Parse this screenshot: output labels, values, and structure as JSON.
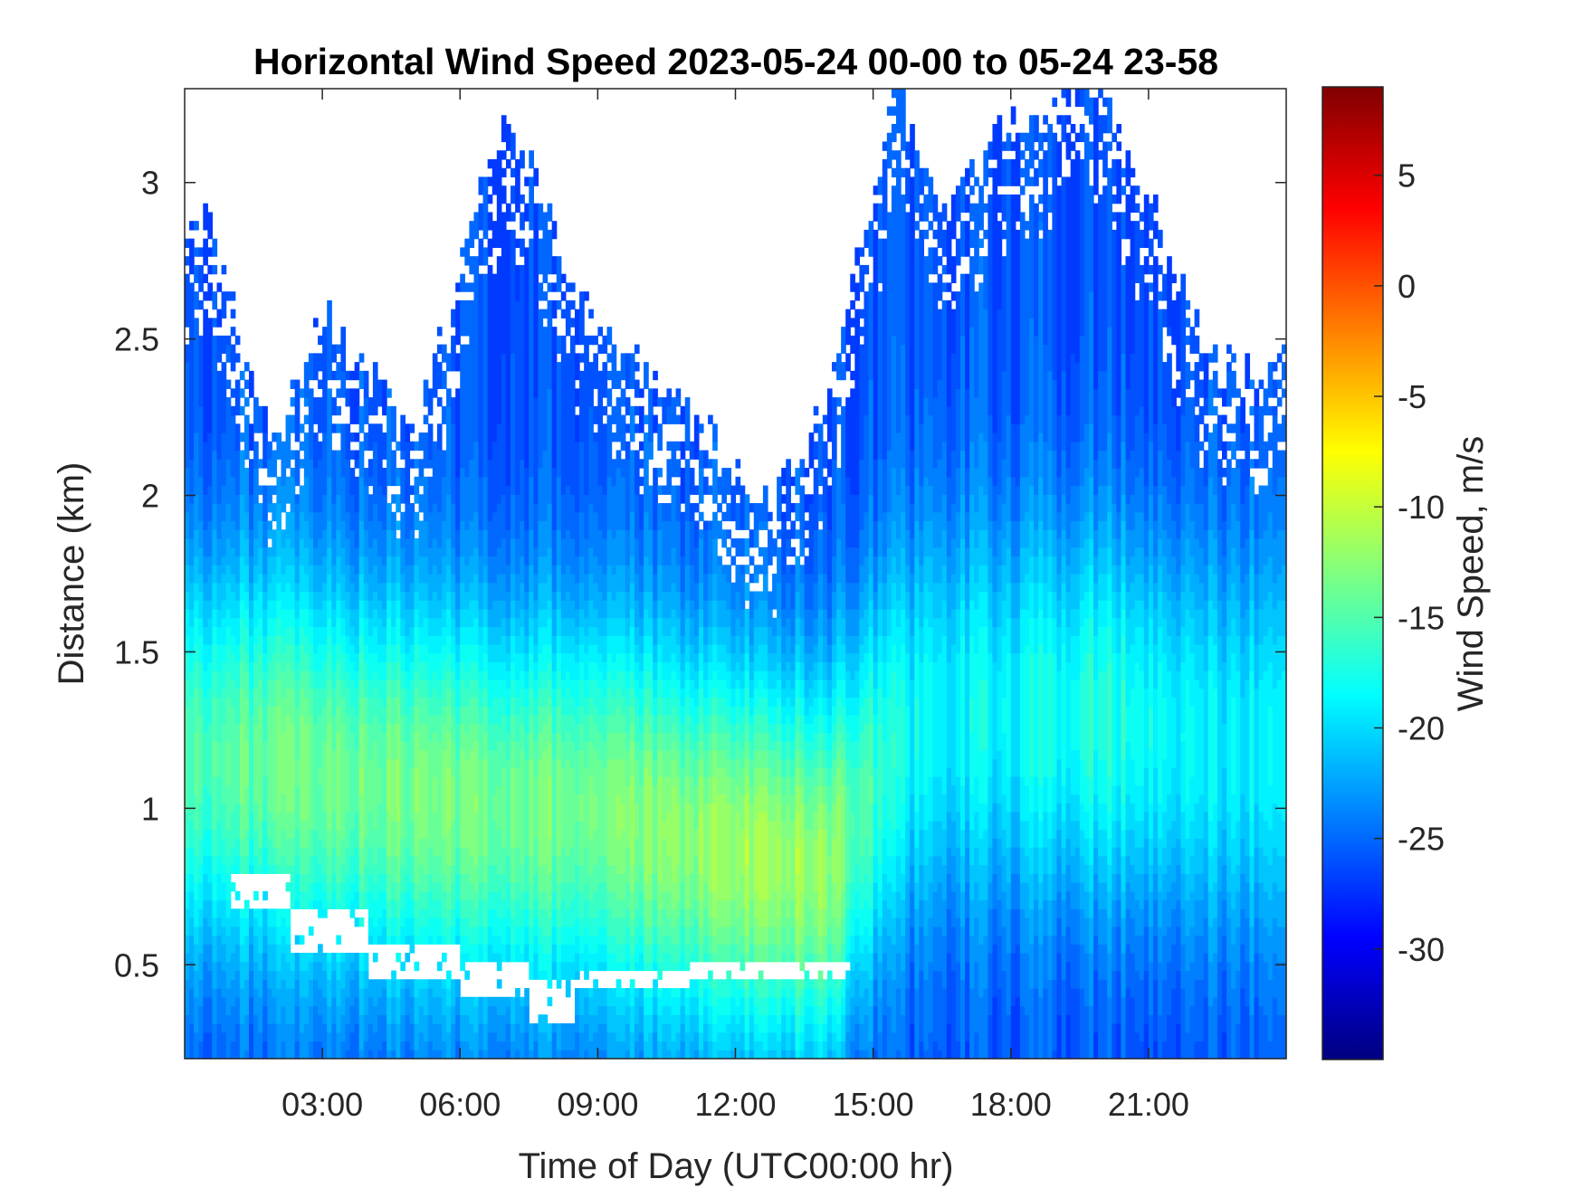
{
  "chart_data": {
    "type": "heatmap",
    "title": "Horizontal Wind Speed 2023-05-24 00-00 to 05-24 23-58",
    "xlabel": "Time of Day (UTC00:00 hr)",
    "ylabel": "Distance (km)",
    "x_unit": "hours",
    "xlim": [
      0,
      24
    ],
    "ylim": [
      0.2,
      3.3
    ],
    "x_ticks": [
      3,
      6,
      9,
      12,
      15,
      18,
      21
    ],
    "x_tick_labels": [
      "03:00",
      "06:00",
      "09:00",
      "12:00",
      "15:00",
      "18:00",
      "21:00"
    ],
    "y_ticks": [
      0.5,
      1,
      1.5,
      2,
      2.5,
      3
    ],
    "y_tick_labels": [
      "0.5",
      "1",
      "1.5",
      "2",
      "2.5",
      "3"
    ],
    "colorbar": {
      "label": "Wind Speed, m/s",
      "range": [
        -35,
        9
      ],
      "ticks": [
        -30,
        -25,
        -20,
        -15,
        -10,
        -5,
        0,
        5
      ],
      "tick_labels": [
        "-30",
        "-25",
        "-20",
        "-15",
        "-10",
        "-5",
        "0",
        "5"
      ],
      "colormap": "jet"
    },
    "grid": false,
    "profile_hours": [
      0.5,
      2,
      3,
      5,
      7,
      9,
      11,
      12.5,
      14,
      15.5,
      16.5,
      18,
      20,
      22.5
    ],
    "valid_top_km": [
      2.85,
      2.15,
      2.6,
      2.2,
      3.25,
      2.5,
      2.3,
      1.95,
      2.3,
      3.3,
      2.9,
      3.2,
      3.3,
      2.4
    ],
    "jet_center_km": [
      1.15,
      1.15,
      1.1,
      1.05,
      1.0,
      1.0,
      0.9,
      0.85,
      0.8,
      1.2,
      1.3,
      1.3,
      1.3,
      1.2
    ],
    "jet_speed_ms": [
      -15,
      -14,
      -14,
      -13.5,
      -13.5,
      -13.5,
      -12.5,
      -11.5,
      -12,
      -18,
      -19,
      -18.5,
      -17,
      -19
    ],
    "edge_speed_ms": -26,
    "low_gap_km": [
      [
        0.68,
        0.78
      ],
      [
        0.55,
        0.68
      ],
      [
        0.45,
        0.58
      ],
      [
        0.4,
        0.5
      ],
      [
        0.3,
        0.45
      ],
      [
        0.42,
        0.48
      ],
      [
        0.45,
        0.5
      ]
    ],
    "low_gap_hours": [
      [
        1,
        2.3
      ],
      [
        2.3,
        4
      ],
      [
        4,
        6
      ],
      [
        6,
        7.5
      ],
      [
        7.5,
        8.5
      ],
      [
        8.5,
        11
      ],
      [
        11,
        14.5
      ]
    ]
  }
}
